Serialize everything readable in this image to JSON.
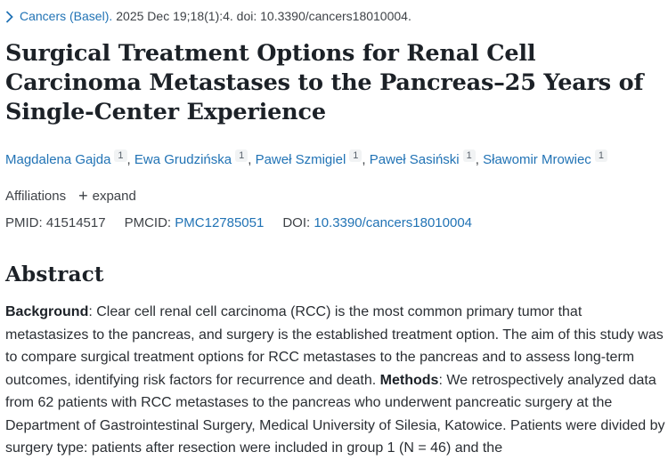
{
  "citation": {
    "journal": "Cancers (Basel).",
    "rest": "2025 Dec 19;18(1):4. doi: 10.3390/cancers18010004."
  },
  "title": "Surgical Treatment Options for Renal Cell Carcinoma Metastases to the Pancreas–25 Years of Single-Center Experience",
  "authors": [
    {
      "name": "Magdalena Gajda",
      "sup": "1"
    },
    {
      "name": "Ewa Grudzińska",
      "sup": "1"
    },
    {
      "name": "Paweł Szmigiel",
      "sup": "1"
    },
    {
      "name": "Paweł Sasiński",
      "sup": "1"
    },
    {
      "name": "Sławomir Mrowiec",
      "sup": "1"
    }
  ],
  "affiliations": {
    "label": "Affiliations",
    "plus_icon": "+",
    "expand_label": "expand"
  },
  "identifiers": {
    "pmid_label": "PMID:",
    "pmid_value": "41514517",
    "pmcid_label": "PMCID:",
    "pmcid_value": "PMC12785051",
    "doi_label": "DOI:",
    "doi_value": "10.3390/cancers18010004"
  },
  "abstract": {
    "heading": "Abstract",
    "background_label": "Background",
    "background_text": ": Clear cell renal cell carcinoma (RCC) is the most common primary tumor that metastasizes to the pancreas, and surgery is the established treatment option. The aim of this study was to compare surgical treatment options for RCC metastases to the pancreas and to assess long-term outcomes, identifying risk factors for recurrence and death. ",
    "methods_label": "Methods",
    "methods_text": ": We retrospectively analyzed data from 62 patients with RCC metastases to the pancreas who underwent pancreatic surgery at the Department of Gastrointestinal Surgery, Medical University of Silesia, Katowice. Patients were divided by surgery type: patients after resection were included in group 1 (N = 46) and the"
  },
  "colors": {
    "link_blue": "#2173b5",
    "text_dark": "#212121"
  }
}
